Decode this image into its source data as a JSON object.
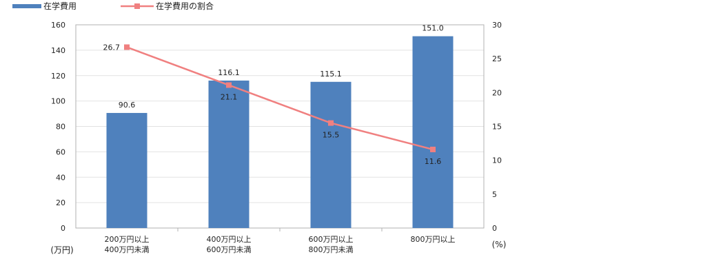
{
  "chart_data": {
    "type": "bar",
    "categories": [
      [
        "200万円以上",
        "400万円未満"
      ],
      [
        "400万円以上",
        "600万円未満"
      ],
      [
        "600万円以上",
        "800万円未満"
      ],
      [
        "800万円以上"
      ]
    ],
    "series": [
      {
        "name": "在学費用",
        "type": "bar",
        "axis": "left",
        "color": "#4f81bd",
        "values": [
          90.6,
          116.1,
          115.1,
          151.0
        ],
        "labels": [
          "90.6",
          "116.1",
          "115.1",
          "151.0"
        ]
      },
      {
        "name": "在学費用の割合",
        "type": "line",
        "axis": "right",
        "color": "#f08080",
        "values": [
          26.7,
          21.1,
          15.5,
          11.6
        ],
        "labels": [
          "26.7",
          "21.1",
          "15.5",
          "11.6"
        ]
      }
    ],
    "left_axis": {
      "unit": "(万円)",
      "min": 0,
      "max": 160,
      "step": 20
    },
    "right_axis": {
      "unit": "(%)",
      "min": 0,
      "max": 30,
      "step": 5
    },
    "grid": true,
    "legend": "top-left"
  }
}
